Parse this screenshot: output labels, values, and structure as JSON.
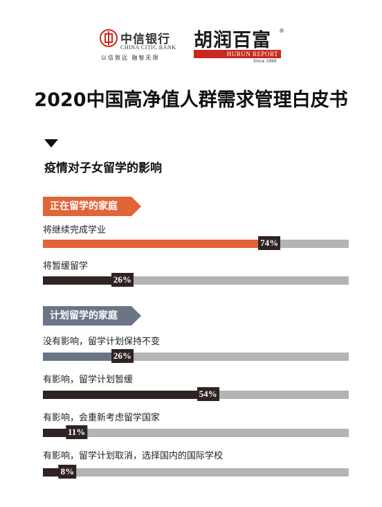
{
  "header": {
    "citic_cn": "中信银行",
    "citic_en": "CHINA CITIC BANK",
    "citic_slogan": "以信致远 融智无限",
    "hurun_cn": "胡润百富",
    "hurun_reg": "®",
    "hurun_en": "HURUN REPORT",
    "hurun_since": "Since 1999"
  },
  "main_title": "2020中国高净值人群需求管理白皮书",
  "subtitle": "疫情对子女留学的影响",
  "colors": {
    "orange": "#e06437",
    "slate": "#6a7586",
    "dark": "#2f2422",
    "track": "#b4b4b4"
  },
  "chart_data": {
    "type": "bar",
    "title": "疫情对子女留学的影响",
    "unit": "%",
    "xlim": [
      0,
      100
    ],
    "groups": [
      {
        "name": "正在留学的家庭",
        "items": [
          {
            "label": "将继续完成学业",
            "value": 74,
            "display": "74%",
            "color": "#e06437"
          },
          {
            "label": "将暂缓留学",
            "value": 26,
            "display": "26%",
            "color": "#2f2422"
          }
        ]
      },
      {
        "name": "计划留学的家庭",
        "items": [
          {
            "label": "没有影响，留学计划保持不变",
            "value": 26,
            "display": "26%",
            "color": "#6a7586"
          },
          {
            "label": "有影响，留学计划暂缓",
            "value": 54,
            "display": "54%",
            "color": "#2f2422"
          },
          {
            "label": "有影响，会重新考虑留学国家",
            "value": 11,
            "display": "11%",
            "color": "#2f2422"
          },
          {
            "label": "有影响，留学计划取消，选择国内的国际学校",
            "value": 8,
            "display": "8%",
            "color": "#2f2422"
          }
        ]
      }
    ]
  }
}
